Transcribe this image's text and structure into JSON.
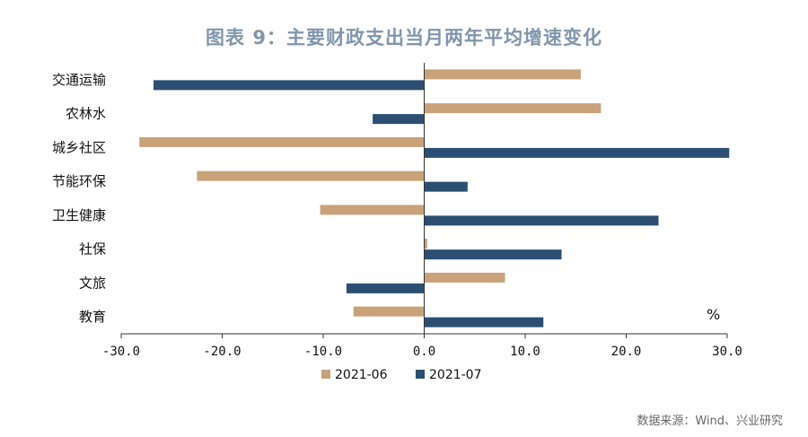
{
  "chart_data": {
    "type": "bar",
    "orientation": "horizontal",
    "title": "图表 9：主要财政支出当月两年平均增速变化",
    "categories": [
      "交通运输",
      "农林水",
      "城乡社区",
      "节能环保",
      "卫生健康",
      "社保",
      "文旅",
      "教育"
    ],
    "series": [
      {
        "name": "2021-06",
        "color": "#c9a27a",
        "values": [
          15.5,
          17.5,
          -28.2,
          -22.5,
          -10.3,
          0.3,
          8.0,
          -7.0
        ]
      },
      {
        "name": "2021-07",
        "color": "#2b4f72",
        "values": [
          -26.8,
          -5.1,
          30.2,
          4.3,
          23.2,
          13.6,
          -7.7,
          11.8
        ]
      }
    ],
    "xlim": [
      -30,
      30
    ],
    "xticks": [
      -30,
      -20,
      -10,
      0,
      10,
      20,
      30
    ],
    "xtick_labels": [
      "-30.0",
      "-20.0",
      "-10.0",
      "0.0",
      "10.0",
      "20.0",
      "30.0"
    ],
    "unit": "%",
    "legend_position": "bottom",
    "grid": false
  },
  "source": "数据来源：Wind、兴业研究"
}
